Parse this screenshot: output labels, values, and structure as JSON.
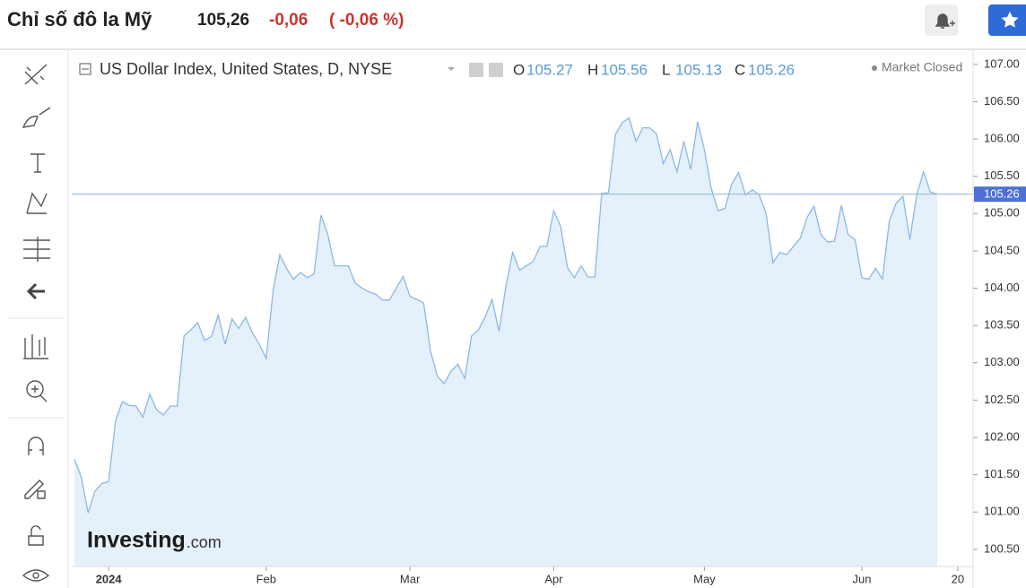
{
  "header": {
    "title": "Chỉ số đô la Mỹ",
    "price": "105,26",
    "change": "-0,06",
    "change_percent": "( -0,06 %)"
  },
  "chart_data": {
    "type": "area",
    "title": "US Dollar Index, United States, D, NYSE",
    "ohlc": [
      {
        "label": "O",
        "value": 105.27
      },
      {
        "label": "H",
        "value": 105.56
      },
      {
        "label": "L",
        "value": 105.13
      },
      {
        "label": "C",
        "value": 105.26
      }
    ],
    "status": "Market Closed",
    "watermark": "Investing",
    "watermark_suffix": ".com",
    "last_price": 105.26,
    "color": "#8cb8e6",
    "area_color": "#e4f0fa",
    "categories": [
      null,
      null,
      null,
      null,
      null,
      "2024",
      null,
      null,
      null,
      null,
      null,
      null,
      null,
      null,
      null,
      null,
      null,
      null,
      null,
      null,
      null,
      null,
      null,
      null,
      null,
      null,
      null,
      null,
      "Feb",
      null,
      null,
      null,
      null,
      null,
      null,
      null,
      null,
      null,
      null,
      null,
      null,
      null,
      null,
      null,
      null,
      null,
      null,
      null,
      null,
      "Mar",
      null,
      null,
      null,
      null,
      null,
      null,
      null,
      null,
      null,
      null,
      null,
      null,
      null,
      null,
      null,
      null,
      null,
      null,
      null,
      null,
      "Apr",
      null,
      null,
      null,
      null,
      null,
      null,
      null,
      null,
      null,
      null,
      null,
      null,
      null,
      null,
      null,
      null,
      null,
      null,
      null,
      null,
      null,
      "May",
      null,
      null,
      null,
      null,
      null,
      null,
      null,
      null,
      null,
      null,
      null,
      null,
      null,
      null,
      null,
      null,
      null,
      null,
      null,
      null,
      null,
      null,
      "Jun",
      null,
      null,
      null,
      null,
      null,
      null,
      null,
      null,
      null,
      null,
      null,
      null,
      null,
      "20",
      null
    ],
    "values": [
      101.71,
      101.47,
      100.99,
      101.28,
      101.38,
      101.41,
      102.22,
      102.48,
      102.43,
      102.42,
      102.27,
      102.58,
      102.37,
      102.3,
      102.42,
      102.42,
      103.36,
      103.44,
      103.54,
      103.3,
      103.35,
      103.64,
      103.25,
      103.59,
      103.46,
      103.61,
      103.4,
      103.25,
      103.06,
      103.96,
      104.45,
      104.26,
      104.12,
      104.21,
      104.14,
      104.19,
      104.98,
      104.72,
      104.3,
      104.3,
      104.3,
      104.07,
      104.0,
      103.95,
      103.92,
      103.84,
      103.84,
      104.0,
      104.16,
      103.89,
      103.85,
      103.8,
      103.16,
      102.82,
      102.72,
      102.89,
      102.98,
      102.79,
      103.36,
      103.44,
      103.62,
      103.85,
      103.42,
      104.02,
      104.48,
      104.24,
      104.3,
      104.36,
      104.56,
      104.56,
      105.04,
      104.83,
      104.28,
      104.14,
      104.3,
      104.15,
      104.15,
      105.27,
      105.28,
      106.06,
      106.22,
      106.28,
      105.97,
      106.15,
      106.15,
      106.07,
      105.67,
      105.86,
      105.56,
      105.97,
      105.59,
      106.23,
      105.86,
      105.34,
      105.04,
      105.07,
      105.4,
      105.55,
      105.25,
      105.32,
      105.25,
      105.01,
      104.34,
      104.48,
      104.45,
      104.56,
      104.67,
      104.95,
      105.1,
      104.72,
      104.62,
      104.63,
      105.11,
      104.72,
      104.65,
      104.14,
      104.12,
      104.27,
      104.12,
      104.9,
      105.14,
      105.23,
      104.65,
      105.25,
      105.56,
      105.29,
      105.26,
      null,
      null,
      null,
      null
    ],
    "ylim": [
      100.27,
      107.19
    ],
    "yticks": [
      {
        "value": 100.5,
        "label": "100.50"
      },
      {
        "value": 101,
        "label": "101.00"
      },
      {
        "value": 101.5,
        "label": "101.50"
      },
      {
        "value": 102,
        "label": "102.00"
      },
      {
        "value": 102.5,
        "label": "102.50"
      },
      {
        "value": 103,
        "label": "103.00"
      },
      {
        "value": 103.5,
        "label": "103.50"
      },
      {
        "value": 104,
        "label": "104.00"
      },
      {
        "value": 104.5,
        "label": "104.50"
      },
      {
        "value": 105,
        "label": "105.00"
      },
      {
        "value": 105.5,
        "label": "105.50"
      },
      {
        "value": 106,
        "label": "106.00"
      },
      {
        "value": 106.5,
        "label": "106.50"
      },
      {
        "value": 107,
        "label": "107.00"
      }
    ]
  }
}
